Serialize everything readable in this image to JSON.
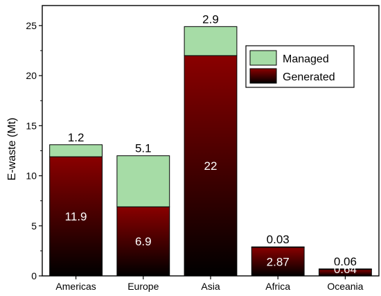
{
  "chart_data": {
    "type": "bar",
    "stacked": true,
    "categories": [
      "Americas",
      "Europe",
      "Asia",
      "Africa",
      "Oceania"
    ],
    "series": [
      {
        "name": "Generated",
        "values": [
          11.9,
          6.9,
          22,
          2.87,
          0.64
        ],
        "labels": [
          "11.9",
          "6.9",
          "22",
          "2.87",
          "0.64"
        ],
        "color_top": "#8a0000",
        "color_bottom": "#000000"
      },
      {
        "name": "Managed",
        "values": [
          1.2,
          5.1,
          2.9,
          0.03,
          0.06
        ],
        "labels": [
          "1.2",
          "5.1",
          "2.9",
          "0.03",
          "0.06"
        ],
        "color": "#a6dca6"
      }
    ],
    "ylabel": "E-waste (Mt)",
    "xlabel": "",
    "ylim": [
      0,
      27
    ],
    "yticks": [
      0,
      5,
      10,
      15,
      20,
      25
    ],
    "ytick_labels": [
      "0",
      "5",
      "10",
      "15",
      "20",
      "25"
    ],
    "legend": {
      "position": "top-right",
      "entries": [
        "Managed",
        "Generated"
      ]
    }
  }
}
